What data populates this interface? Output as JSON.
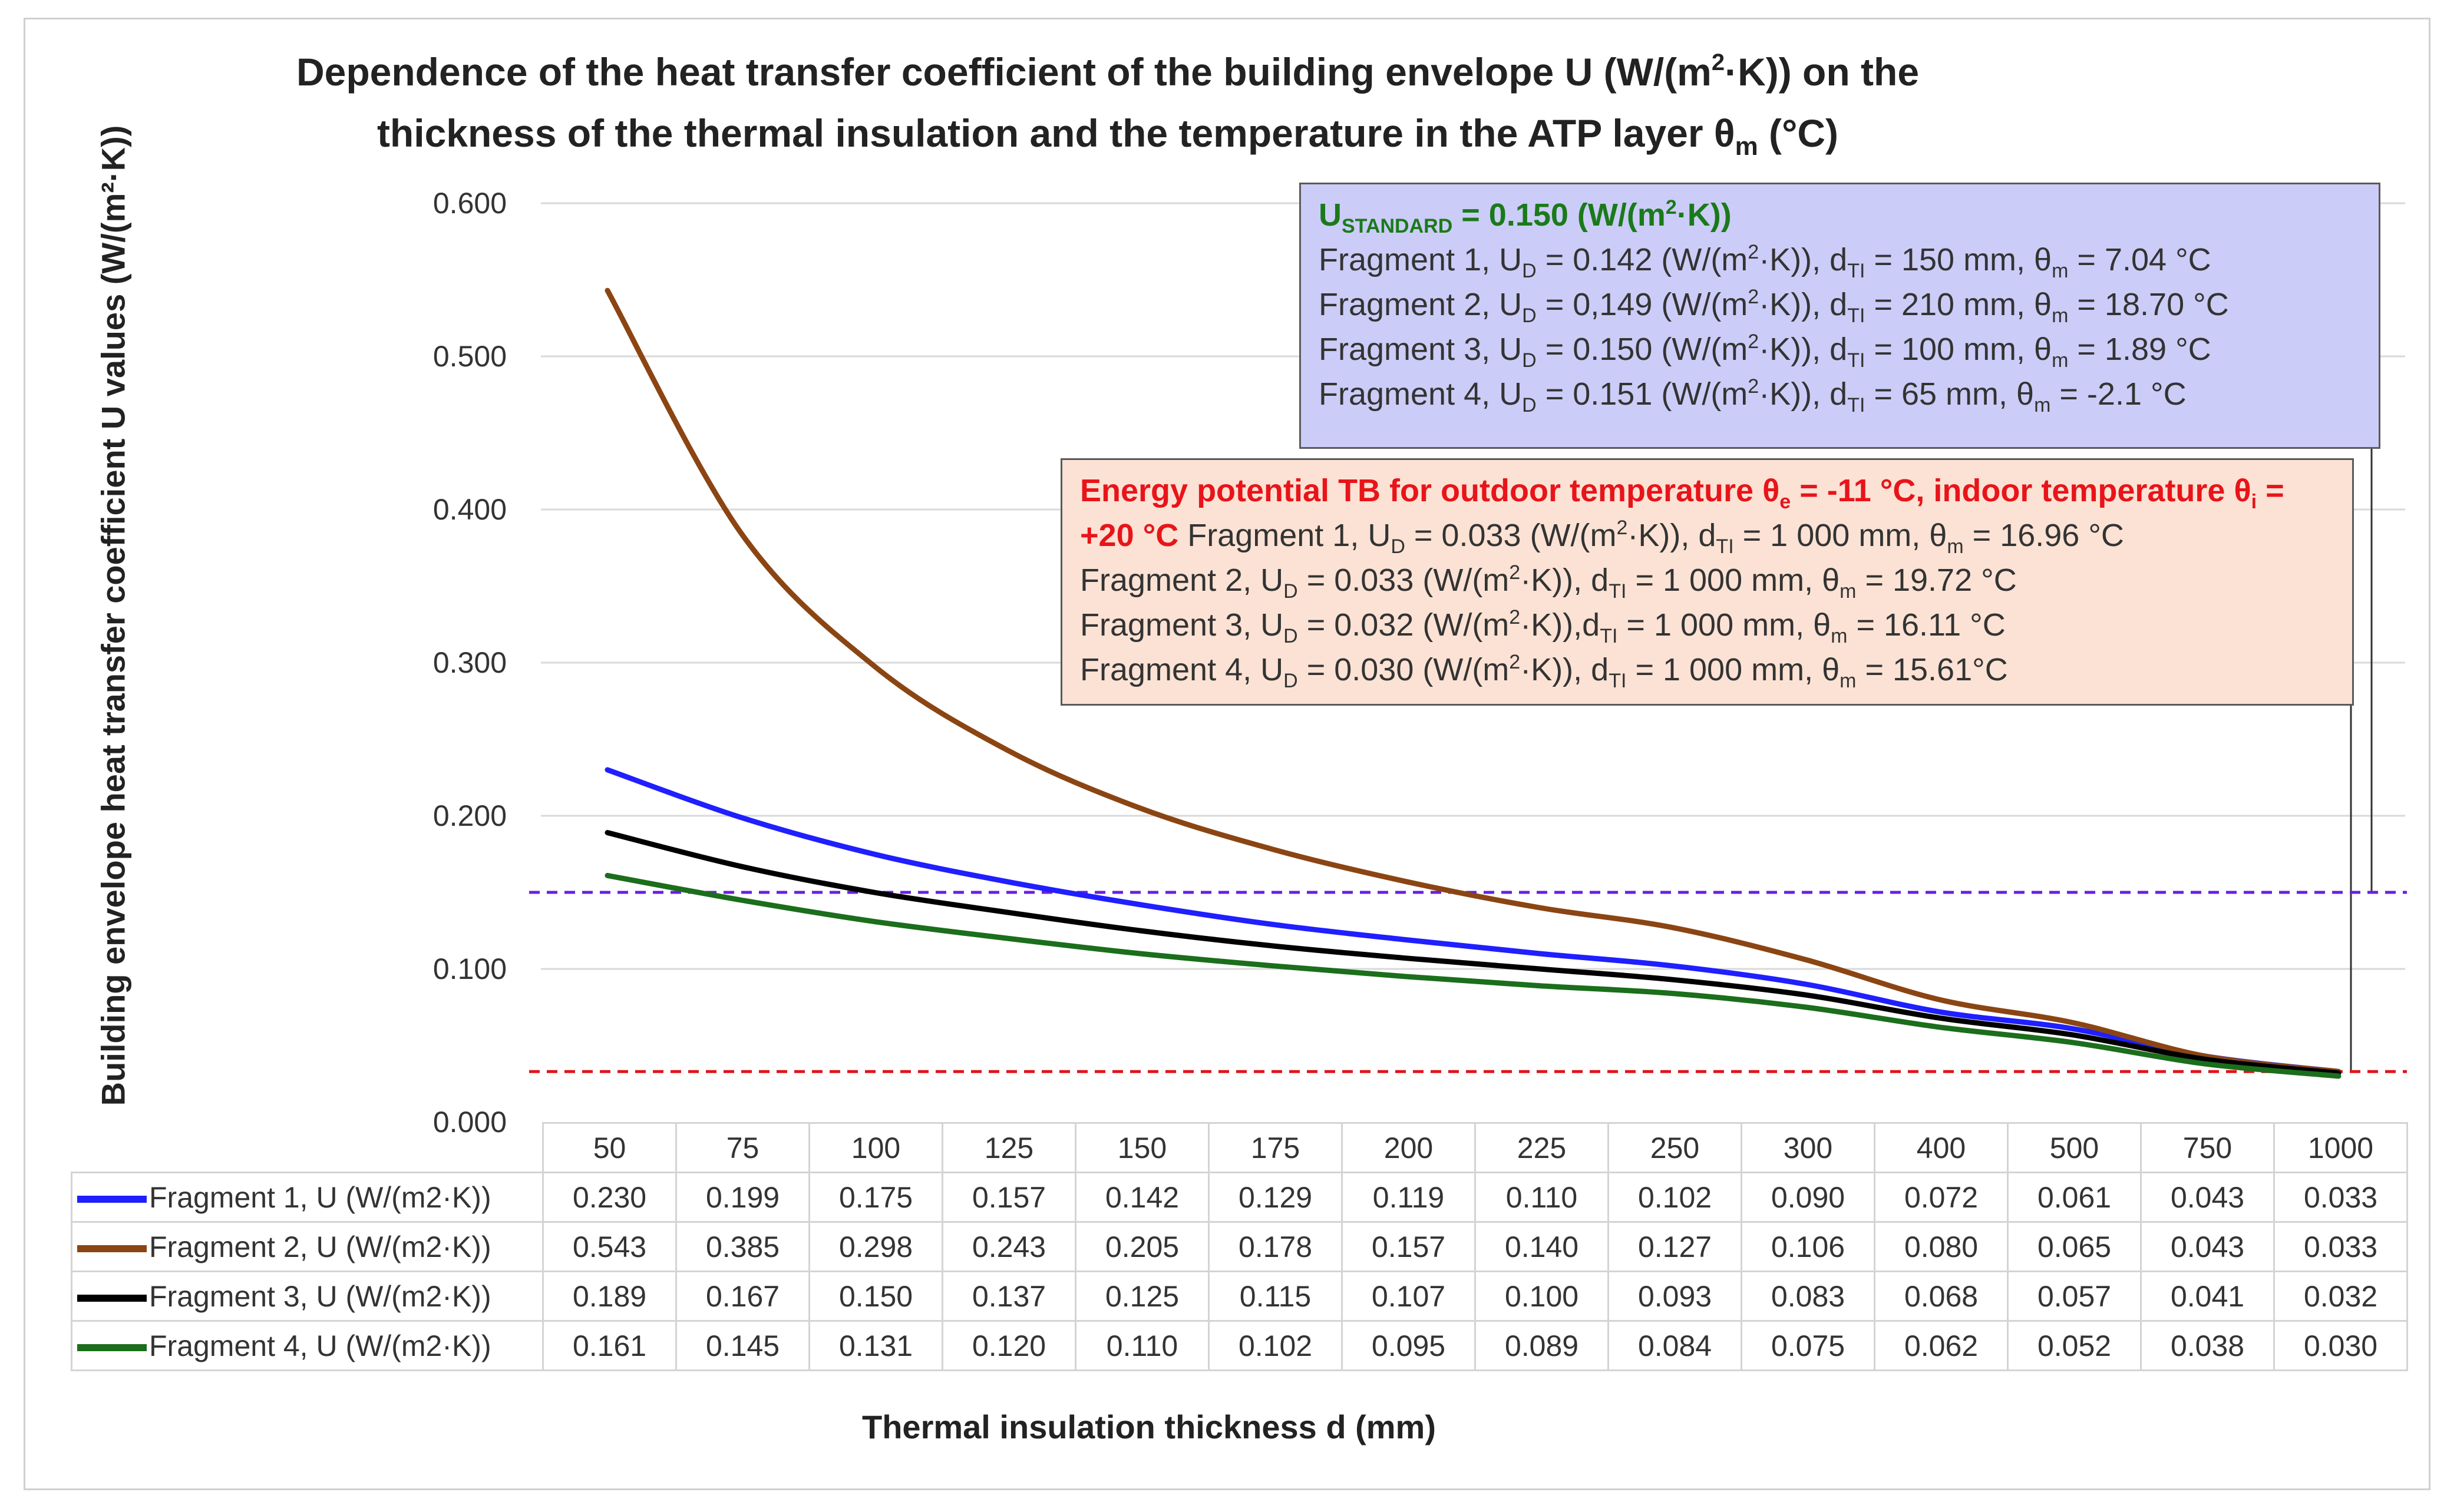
{
  "chart_data": {
    "type": "line",
    "title_line1": "Dependence of the heat transfer coefficient of the building envelope U (W/(m",
    "title_sup": "2",
    "title_line1_end": "·K)) on the",
    "title_line2": "thickness of the thermal insulation and the temperature in the ATP layer θ",
    "title_sub": "m",
    "title_line2_end": " (°C)",
    "ylabel": "Building envelope heat transfer coefficient U values (W/(m²·K))",
    "xlabel": "Thermal insulation thickness d (mm)",
    "ylim": [
      0,
      0.6
    ],
    "y_ticks": [
      "0.000",
      "0.100",
      "0.200",
      "0.300",
      "0.400",
      "0.500",
      "0.600"
    ],
    "categories": [
      "50",
      "75",
      "100",
      "125",
      "150",
      "175",
      "200",
      "225",
      "250",
      "300",
      "400",
      "500",
      "750",
      "1000"
    ],
    "series": [
      {
        "name": "Fragment 1, U (W/(m2·K))",
        "color": "#1f1fff",
        "values": [
          "0.230",
          "0.199",
          "0.175",
          "0.157",
          "0.142",
          "0.129",
          "0.119",
          "0.110",
          "0.102",
          "0.090",
          "0.072",
          "0.061",
          "0.043",
          "0.033"
        ]
      },
      {
        "name": "Fragment 2, U (W/(m2·K))",
        "color": "#8b4513",
        "values": [
          "0.543",
          "0.385",
          "0.298",
          "0.243",
          "0.205",
          "0.178",
          "0.157",
          "0.140",
          "0.127",
          "0.106",
          "0.080",
          "0.065",
          "0.043",
          "0.033"
        ]
      },
      {
        "name": "Fragment 3, U (W/(m2·K))",
        "color": "#000000",
        "values": [
          "0.189",
          "0.167",
          "0.150",
          "0.137",
          "0.125",
          "0.115",
          "0.107",
          "0.100",
          "0.093",
          "0.083",
          "0.068",
          "0.057",
          "0.041",
          "0.032"
        ]
      },
      {
        "name": "Fragment 4, U (W/(m2·K))",
        "color": "#1b6e1b",
        "values": [
          "0.161",
          "0.145",
          "0.131",
          "0.120",
          "0.110",
          "0.102",
          "0.095",
          "0.089",
          "0.084",
          "0.075",
          "0.062",
          "0.052",
          "0.038",
          "0.030"
        ]
      }
    ],
    "reference_lines": [
      {
        "name": "U standard",
        "value": 0.15,
        "color": "#6a1fe0"
      },
      {
        "name": "Energy potential",
        "value": 0.033,
        "color": "#e0141a"
      }
    ]
  },
  "standard_box": {
    "heading_u": "U",
    "heading_sub": "STANDARD",
    "heading_rest_a": " = 0.150 (W/(m",
    "heading_sup": "2",
    "heading_rest_b": "·K))",
    "lines": [
      {
        "a": "Fragment 1, U",
        "b": " = 0.142 (W/(m",
        "c": "·K)), d",
        "d": " = 150 mm, θ",
        "e": " = 7.04 °C"
      },
      {
        "a": "Fragment 2, U",
        "b": " = 0,149 (W/(m",
        "c": "·K)), d",
        "d": " = 210 mm, θ",
        "e": " = 18.70 °C"
      },
      {
        "a": "Fragment 3, U",
        "b": " = 0.150 (W/(m",
        "c": "·K)), d",
        "d": " = 100 mm, θ",
        "e": " = 1.89 °C"
      },
      {
        "a": "Fragment 4, U",
        "b": " = 0.151 (W/(m",
        "c": "·K)), d",
        "d": " = 65 mm, θ",
        "e": " = -2.1 °C"
      }
    ],
    "sub_d": "D",
    "sub_ti": "TI",
    "sub_m": "m",
    "sup_2": "2"
  },
  "energy_box": {
    "red_a": "Energy potential TB for outdoor temperature θ",
    "red_sub_e": "e",
    "red_b": " = -11 °C, indoor temperature θ",
    "red_sub_i": "i",
    "red_c": " =",
    "red_d": "+20 °C",
    "lines": [
      {
        "a": " Fragment 1, U",
        "b": " = 0.033 (W/(m",
        "c": "·K)), d",
        "d": " = 1 000 mm, θ",
        "e": " = 16.96 °C"
      },
      {
        "a": "Fragment 2, U",
        "b": " = 0.033 (W/(m",
        "c": "·K)), d",
        "d": " = 1 000 mm, θ",
        "e": " = 19.72 °C"
      },
      {
        "a": "Fragment 3, U",
        "b": " = 0.032 (W/(m",
        "c": "·K)),d",
        "d": " = 1 000 mm, θ",
        "e": " = 16.11 °C"
      },
      {
        "a": "Fragment 4, U",
        "b": " = 0.030 (W/(m",
        "c": "·K)), d",
        "d": " = 1 000 mm, θ",
        "e": " = 15.61°C"
      }
    ]
  }
}
